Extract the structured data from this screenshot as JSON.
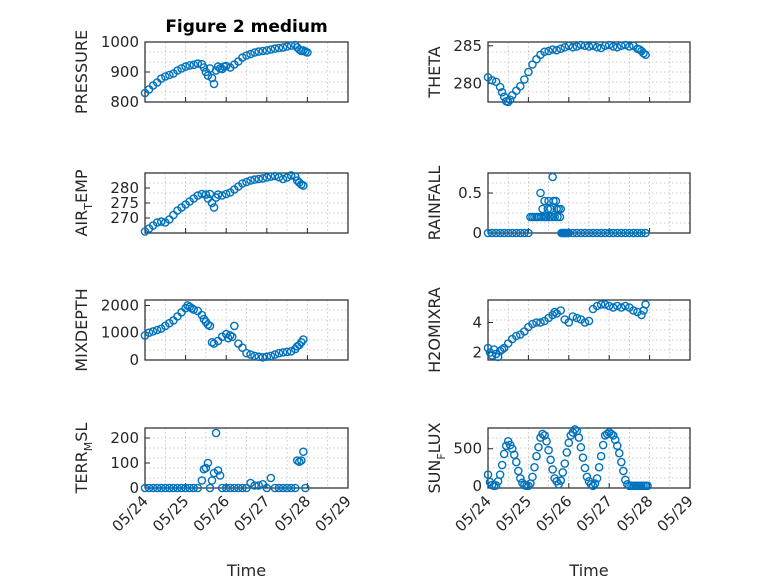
{
  "window": {
    "title": "Figure 2 medium"
  },
  "chart_data": [
    {
      "type": "scatter",
      "title": "Figure 2 medium",
      "ylabel": "PRESSURE",
      "ylabel_sub": "",
      "ylim": [
        800,
        1000
      ],
      "yticks": [
        800,
        900,
        1000
      ],
      "xlim": [
        0,
        5
      ],
      "xticks": [],
      "xlabel": "",
      "series": [
        {
          "x": [
            0,
            0.1,
            0.2,
            0.3,
            0.4,
            0.5,
            0.6,
            0.7,
            0.8,
            0.9,
            1.0,
            1.1,
            1.2,
            1.3,
            1.4,
            1.45,
            1.5,
            1.55,
            1.6,
            1.65,
            1.7,
            1.75,
            1.8,
            1.85,
            1.9,
            1.95,
            2.0,
            2.1,
            2.2,
            2.3,
            2.4,
            2.5,
            2.6,
            2.7,
            2.8,
            2.9,
            3.0,
            3.1,
            3.2,
            3.3,
            3.4,
            3.5,
            3.6,
            3.7,
            3.75,
            3.8,
            3.85,
            3.9,
            3.95,
            4.0
          ],
          "y": [
            830,
            842,
            855,
            865,
            878,
            885,
            890,
            895,
            905,
            912,
            918,
            922,
            924,
            928,
            926,
            915,
            900,
            888,
            912,
            880,
            860,
            905,
            918,
            912,
            910,
            918,
            920,
            915,
            925,
            935,
            948,
            955,
            960,
            965,
            968,
            970,
            972,
            975,
            978,
            980,
            982,
            985,
            988,
            990,
            982,
            975,
            970,
            972,
            968,
            965
          ]
        }
      ]
    },
    {
      "type": "scatter",
      "ylabel": "THETA",
      "ylabel_sub": "",
      "ylim": [
        277.5,
        285.5
      ],
      "yticks": [
        280,
        285
      ],
      "xlim": [
        0,
        5
      ],
      "xticks": [],
      "xlabel": "",
      "series": [
        {
          "x": [
            0,
            0.1,
            0.2,
            0.3,
            0.35,
            0.4,
            0.45,
            0.5,
            0.55,
            0.6,
            0.7,
            0.8,
            0.9,
            1.0,
            1.1,
            1.2,
            1.3,
            1.4,
            1.5,
            1.6,
            1.7,
            1.8,
            1.9,
            2.0,
            2.1,
            2.2,
            2.3,
            2.4,
            2.5,
            2.6,
            2.7,
            2.8,
            2.9,
            3.0,
            3.1,
            3.2,
            3.3,
            3.4,
            3.5,
            3.6,
            3.7,
            3.75,
            3.8,
            3.85,
            3.9
          ],
          "y": [
            280.8,
            280.4,
            280.2,
            279.5,
            278.8,
            278.2,
            277.6,
            277.5,
            277.8,
            278.4,
            279.0,
            279.6,
            280.5,
            281.5,
            282.5,
            283.2,
            283.8,
            284.2,
            284.3,
            284.5,
            284.4,
            284.6,
            284.8,
            285.0,
            284.8,
            284.9,
            285.1,
            285.0,
            284.9,
            285.0,
            284.8,
            284.7,
            285.0,
            285.1,
            284.9,
            284.8,
            285.0,
            285.1,
            284.9,
            285.0,
            284.6,
            284.5,
            284.3,
            284.0,
            283.8
          ]
        }
      ]
    },
    {
      "type": "scatter",
      "ylabel": "AIR",
      "ylabel_sub": "T",
      "ylabel_tail": "EMP",
      "ylim": [
        265,
        285
      ],
      "yticks": [
        270,
        275,
        280
      ],
      "xlim": [
        0,
        5
      ],
      "xticks": [],
      "xlabel": "",
      "series": [
        {
          "x": [
            0,
            0.1,
            0.2,
            0.3,
            0.4,
            0.5,
            0.6,
            0.7,
            0.8,
            0.9,
            1.0,
            1.1,
            1.2,
            1.3,
            1.4,
            1.5,
            1.55,
            1.6,
            1.65,
            1.7,
            1.75,
            1.8,
            1.9,
            2.0,
            2.1,
            2.2,
            2.3,
            2.4,
            2.5,
            2.6,
            2.7,
            2.8,
            2.9,
            3.0,
            3.1,
            3.2,
            3.3,
            3.4,
            3.5,
            3.6,
            3.7,
            3.75,
            3.8,
            3.85,
            3.9
          ],
          "y": [
            265.5,
            266.5,
            267.5,
            268.5,
            268.8,
            268.5,
            269.5,
            271.0,
            272.5,
            273.5,
            274.5,
            275.5,
            276.5,
            277.5,
            278.0,
            277.8,
            276.5,
            278.0,
            275.0,
            273.5,
            276.8,
            277.8,
            277.5,
            278.0,
            278.5,
            279.5,
            280.5,
            281.5,
            282.0,
            282.5,
            282.8,
            283.0,
            283.2,
            283.5,
            283.8,
            284.0,
            283.6,
            283.0,
            283.5,
            284.2,
            283.8,
            282.5,
            281.8,
            281.2,
            280.8
          ]
        }
      ]
    },
    {
      "type": "scatter",
      "ylabel": "RAINFALL",
      "ylabel_sub": "",
      "ylim": [
        0,
        0.75
      ],
      "yticks": [
        0,
        0.5
      ],
      "xlim": [
        0,
        5
      ],
      "xticks": [],
      "xlabel": "",
      "series": [
        {
          "x": [
            0,
            0.1,
            0.2,
            0.3,
            0.4,
            0.5,
            0.6,
            0.7,
            0.8,
            0.9,
            1.0,
            1.05,
            1.1,
            1.15,
            1.2,
            1.25,
            1.3,
            1.32,
            1.35,
            1.38,
            1.4,
            1.42,
            1.45,
            1.48,
            1.5,
            1.52,
            1.55,
            1.58,
            1.6,
            1.62,
            1.65,
            1.68,
            1.7,
            1.72,
            1.75,
            1.78,
            1.8,
            1.82,
            1.85,
            1.88,
            1.9,
            1.92,
            1.95,
            1.98,
            2.0,
            2.1,
            2.2,
            2.3,
            2.4,
            2.5,
            2.6,
            2.7,
            2.8,
            2.9,
            3.0,
            3.1,
            3.2,
            3.3,
            3.4,
            3.5,
            3.6,
            3.7,
            3.8,
            3.9
          ],
          "y": [
            0,
            0,
            0,
            0,
            0,
            0,
            0,
            0,
            0,
            0,
            0,
            0.2,
            0.2,
            0.2,
            0.2,
            0.2,
            0.5,
            0.2,
            0.3,
            0.2,
            0.4,
            0.2,
            0.2,
            0.3,
            0.4,
            0.2,
            0.3,
            0.2,
            0.7,
            0.4,
            0.2,
            0.4,
            0.3,
            0.2,
            0.3,
            0.2,
            0.3,
            0,
            0,
            0,
            0,
            0,
            0,
            0,
            0,
            0,
            0,
            0,
            0,
            0,
            0,
            0,
            0,
            0,
            0,
            0,
            0,
            0,
            0,
            0,
            0,
            0,
            0,
            0
          ]
        }
      ]
    },
    {
      "type": "scatter",
      "ylabel": "MIXDEPTH",
      "ylabel_sub": "",
      "ylim": [
        0,
        2200
      ],
      "yticks": [
        0,
        1000,
        2000
      ],
      "xlim": [
        0,
        5
      ],
      "xticks": [],
      "xlabel": "",
      "series": [
        {
          "x": [
            0,
            0.1,
            0.2,
            0.3,
            0.4,
            0.5,
            0.6,
            0.7,
            0.8,
            0.9,
            1.0,
            1.05,
            1.1,
            1.15,
            1.2,
            1.3,
            1.4,
            1.45,
            1.5,
            1.55,
            1.6,
            1.65,
            1.7,
            1.8,
            1.9,
            2.0,
            2.05,
            2.1,
            2.15,
            2.2,
            2.3,
            2.4,
            2.5,
            2.6,
            2.7,
            2.8,
            2.9,
            3.0,
            3.1,
            3.2,
            3.3,
            3.4,
            3.5,
            3.6,
            3.7,
            3.75,
            3.8,
            3.85,
            3.9
          ],
          "y": [
            900,
            1000,
            1050,
            1100,
            1150,
            1250,
            1350,
            1450,
            1600,
            1750,
            1900,
            2000,
            1950,
            1900,
            1850,
            1800,
            1650,
            1500,
            1400,
            1300,
            1250,
            650,
            600,
            700,
            850,
            950,
            800,
            900,
            850,
            1250,
            600,
            450,
            250,
            200,
            150,
            120,
            100,
            120,
            150,
            200,
            250,
            280,
            300,
            320,
            400,
            500,
            550,
            650,
            750
          ]
        }
      ]
    },
    {
      "type": "scatter",
      "ylabel": "H2OMIXRA",
      "ylabel_sub": "",
      "ylim": [
        1.5,
        5.5
      ],
      "yticks": [
        2,
        4
      ],
      "xlim": [
        0,
        5
      ],
      "xticks": [],
      "xlabel": "",
      "series": [
        {
          "x": [
            0,
            0.05,
            0.1,
            0.15,
            0.2,
            0.25,
            0.3,
            0.35,
            0.4,
            0.5,
            0.6,
            0.7,
            0.8,
            0.9,
            1.0,
            1.1,
            1.2,
            1.3,
            1.4,
            1.5,
            1.6,
            1.65,
            1.7,
            1.8,
            1.9,
            2.0,
            2.1,
            2.2,
            2.3,
            2.4,
            2.5,
            2.6,
            2.7,
            2.8,
            2.9,
            3.0,
            3.1,
            3.2,
            3.3,
            3.4,
            3.5,
            3.6,
            3.7,
            3.8,
            3.85,
            3.9
          ],
          "y": [
            2.3,
            2.0,
            1.8,
            2.2,
            1.9,
            1.7,
            2.1,
            2.2,
            2.3,
            2.6,
            2.9,
            3.1,
            3.2,
            3.4,
            3.7,
            3.9,
            4.0,
            4.0,
            4.1,
            4.3,
            4.5,
            4.7,
            4.6,
            4.8,
            4.2,
            4.0,
            4.4,
            4.3,
            4.2,
            4.0,
            4.1,
            4.9,
            5.1,
            5.2,
            5.2,
            5.1,
            5.0,
            5.1,
            5.0,
            5.1,
            5.0,
            4.8,
            4.7,
            4.5,
            4.8,
            5.2
          ]
        }
      ]
    },
    {
      "type": "scatter",
      "ylabel": "TERR",
      "ylabel_sub": "M",
      "ylabel_tail": "SL",
      "ylim": [
        0,
        240
      ],
      "yticks": [
        0,
        100,
        200
      ],
      "xlim": [
        0,
        5
      ],
      "xticks": [
        "05/24",
        "05/25",
        "05/26",
        "05/27",
        "05/28",
        "05/29"
      ],
      "xlabel": "Time",
      "series": [
        {
          "x": [
            0,
            0.1,
            0.2,
            0.3,
            0.4,
            0.5,
            0.6,
            0.7,
            0.8,
            0.9,
            1.0,
            1.1,
            1.2,
            1.3,
            1.4,
            1.45,
            1.5,
            1.55,
            1.6,
            1.65,
            1.7,
            1.75,
            1.8,
            1.85,
            1.9,
            2.0,
            2.1,
            2.2,
            2.3,
            2.4,
            2.5,
            2.6,
            2.7,
            2.8,
            2.9,
            3.0,
            3.1,
            3.2,
            3.3,
            3.4,
            3.5,
            3.6,
            3.7,
            3.75,
            3.8,
            3.85,
            3.9,
            3.95
          ],
          "y": [
            0,
            0,
            0,
            0,
            0,
            0,
            0,
            0,
            0,
            0,
            0,
            0,
            0,
            0,
            30,
            75,
            80,
            100,
            0,
            30,
            60,
            220,
            70,
            50,
            0,
            0,
            0,
            0,
            0,
            0,
            0,
            20,
            10,
            10,
            15,
            0,
            40,
            0,
            0,
            0,
            0,
            0,
            0,
            110,
            105,
            110,
            145,
            0
          ]
        }
      ]
    },
    {
      "type": "scatter",
      "ylabel": "SUN",
      "ylabel_sub": "F",
      "ylabel_tail": "LUX",
      "ylim": [
        -30,
        780
      ],
      "yticks": [
        0,
        500
      ],
      "xlim": [
        0,
        5
      ],
      "xticks": [
        "05/24",
        "05/25",
        "05/26",
        "05/27",
        "05/28",
        "05/29"
      ],
      "xlabel": "Time",
      "series": [
        {
          "x": [
            0,
            0.05,
            0.1,
            0.15,
            0.2,
            0.25,
            0.3,
            0.35,
            0.4,
            0.45,
            0.5,
            0.55,
            0.6,
            0.65,
            0.7,
            0.75,
            0.8,
            0.85,
            0.9,
            0.95,
            1.0,
            1.05,
            1.1,
            1.15,
            1.2,
            1.25,
            1.3,
            1.35,
            1.4,
            1.45,
            1.5,
            1.55,
            1.6,
            1.65,
            1.7,
            1.75,
            1.8,
            1.85,
            1.9,
            1.95,
            2.0,
            2.05,
            2.1,
            2.15,
            2.2,
            2.25,
            2.3,
            2.35,
            2.4,
            2.45,
            2.5,
            2.55,
            2.6,
            2.65,
            2.7,
            2.75,
            2.8,
            2.85,
            2.9,
            2.95,
            3.0,
            3.05,
            3.1,
            3.15,
            3.2,
            3.25,
            3.3,
            3.35,
            3.4,
            3.45,
            3.5,
            3.55,
            3.6,
            3.65,
            3.7,
            3.75,
            3.8,
            3.85,
            3.9,
            3.95
          ],
          "y": [
            150,
            50,
            10,
            0,
            5,
            60,
            150,
            280,
            430,
            540,
            600,
            550,
            500,
            420,
            320,
            200,
            100,
            40,
            10,
            0,
            0,
            30,
            120,
            250,
            400,
            520,
            650,
            700,
            680,
            600,
            480,
            350,
            220,
            100,
            60,
            20,
            70,
            180,
            300,
            450,
            580,
            680,
            720,
            760,
            740,
            650,
            520,
            380,
            240,
            120,
            60,
            20,
            0,
            30,
            100,
            250,
            400,
            550,
            680,
            700,
            720,
            700,
            680,
            620,
            540,
            440,
            320,
            200,
            80,
            20,
            0,
            0,
            0,
            0,
            0,
            0,
            0,
            0,
            0,
            0
          ]
        }
      ]
    }
  ]
}
